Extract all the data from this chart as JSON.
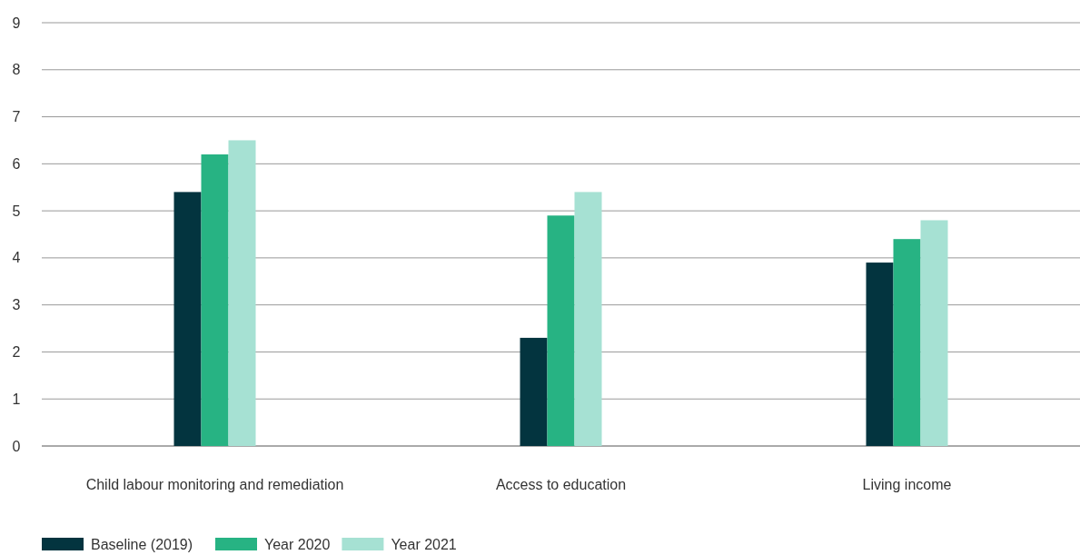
{
  "chart_data": {
    "type": "bar",
    "categories": [
      "Child labour monitoring and remediation",
      "Access to education",
      "Living income"
    ],
    "series": [
      {
        "name": "Baseline (2019)",
        "color": "#03343f",
        "values": [
          5.4,
          2.3,
          3.9
        ]
      },
      {
        "name": "Year 2020",
        "color": "#27b383",
        "values": [
          6.2,
          4.9,
          4.4
        ]
      },
      {
        "name": "Year 2021",
        "color": "#a6e1d3",
        "values": [
          6.5,
          5.4,
          4.8
        ]
      }
    ],
    "ylim": [
      0,
      9
    ],
    "yticks": [
      0,
      1,
      2,
      3,
      4,
      5,
      6,
      7,
      8,
      9
    ],
    "grid": "y",
    "legend": "bottom left"
  }
}
